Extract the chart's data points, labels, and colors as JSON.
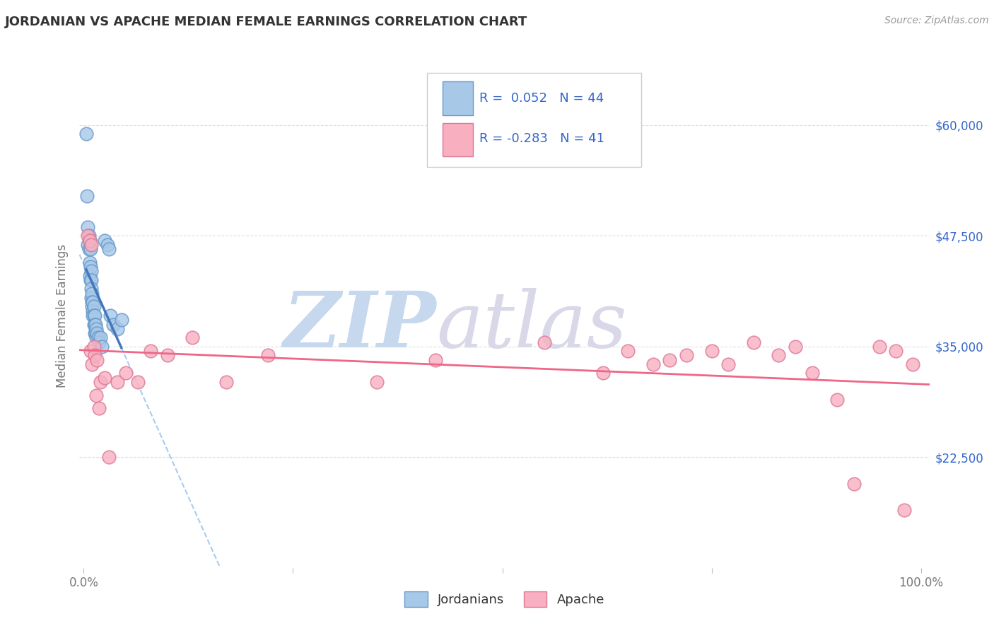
{
  "title": "JORDANIAN VS APACHE MEDIAN FEMALE EARNINGS CORRELATION CHART",
  "source": "Source: ZipAtlas.com",
  "ylabel": "Median Female Earnings",
  "yticks": [
    22500,
    35000,
    47500,
    60000
  ],
  "ytick_labels": [
    "$22,500",
    "$35,000",
    "$47,500",
    "$60,000"
  ],
  "ymin": 10000,
  "ymax": 67000,
  "xmin": -0.005,
  "xmax": 1.01,
  "jordanian_R": "0.052",
  "jordanian_N": 44,
  "apache_R": "-0.283",
  "apache_N": 41,
  "blue_color": "#A8C8E8",
  "blue_edge": "#6699CC",
  "pink_color": "#F8B0C0",
  "pink_edge": "#DD7799",
  "blue_line_color": "#4477BB",
  "pink_line_color": "#EE6688",
  "dashed_line_color": "#AACCEE",
  "background_color": "#FFFFFF",
  "legend_R_color": "#3366CC",
  "grid_color": "#DDDDDD",
  "jordanian_x": [
    0.003,
    0.004,
    0.005,
    0.005,
    0.006,
    0.006,
    0.007,
    0.007,
    0.007,
    0.008,
    0.008,
    0.008,
    0.009,
    0.009,
    0.009,
    0.009,
    0.01,
    0.01,
    0.01,
    0.011,
    0.011,
    0.011,
    0.012,
    0.012,
    0.012,
    0.013,
    0.013,
    0.013,
    0.014,
    0.014,
    0.015,
    0.015,
    0.016,
    0.017,
    0.018,
    0.02,
    0.022,
    0.025,
    0.028,
    0.03,
    0.032,
    0.035,
    0.04,
    0.045
  ],
  "jordanian_y": [
    59000,
    52000,
    48500,
    46500,
    47500,
    46000,
    47000,
    44500,
    43000,
    46000,
    44000,
    42500,
    43500,
    42500,
    41500,
    40500,
    41000,
    40000,
    39500,
    40000,
    39000,
    38500,
    39500,
    38500,
    37500,
    38500,
    37500,
    36500,
    37500,
    36500,
    37000,
    36000,
    36500,
    36000,
    35500,
    36000,
    35000,
    47000,
    46500,
    46000,
    38500,
    37500,
    37000,
    38000
  ],
  "apache_x": [
    0.005,
    0.007,
    0.008,
    0.009,
    0.01,
    0.012,
    0.013,
    0.015,
    0.016,
    0.018,
    0.02,
    0.025,
    0.03,
    0.04,
    0.05,
    0.065,
    0.08,
    0.1,
    0.13,
    0.17,
    0.22,
    0.35,
    0.42,
    0.55,
    0.62,
    0.65,
    0.68,
    0.7,
    0.72,
    0.75,
    0.77,
    0.8,
    0.83,
    0.85,
    0.87,
    0.9,
    0.92,
    0.95,
    0.97,
    0.98,
    0.99
  ],
  "apache_y": [
    47500,
    47000,
    34500,
    46500,
    33000,
    35000,
    34000,
    29500,
    33500,
    28000,
    31000,
    31500,
    22500,
    31000,
    32000,
    31000,
    34500,
    34000,
    36000,
    31000,
    34000,
    31000,
    33500,
    35500,
    32000,
    34500,
    33000,
    33500,
    34000,
    34500,
    33000,
    35500,
    34000,
    35000,
    32000,
    29000,
    19500,
    35000,
    34500,
    16500,
    33000
  ]
}
